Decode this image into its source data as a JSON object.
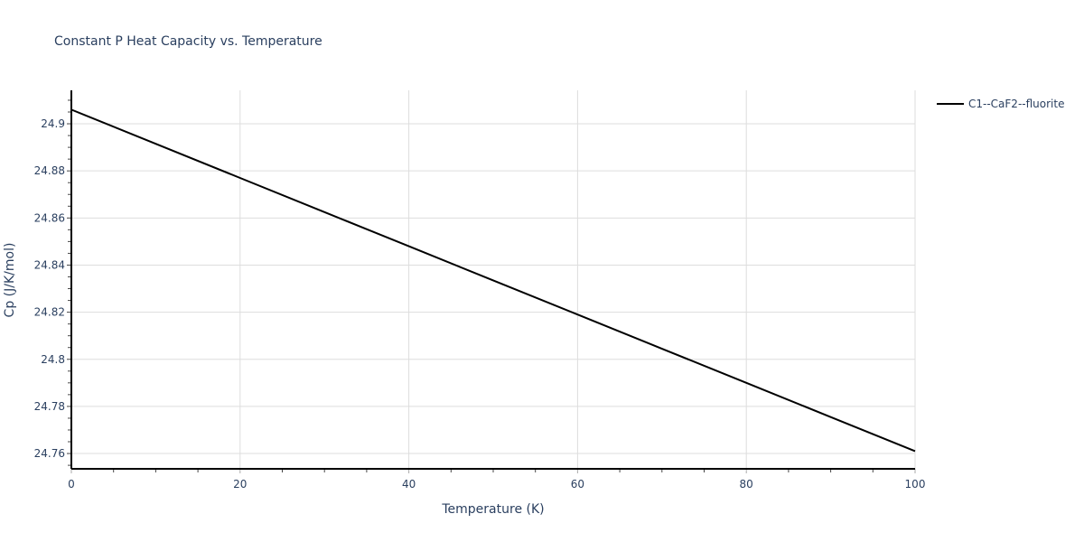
{
  "chart_data": {
    "type": "line",
    "title": "Constant P Heat Capacity vs. Temperature",
    "xlabel": "Temperature (K)",
    "ylabel": "Cp (J/K/mol)",
    "xlim": [
      0,
      100
    ],
    "ylim": [
      24.7535,
      24.9142
    ],
    "x_ticks": [
      0,
      20,
      40,
      60,
      80,
      100
    ],
    "y_ticks": [
      24.76,
      24.78,
      24.8,
      24.82,
      24.84,
      24.86,
      24.88,
      24.9
    ],
    "y_tick_labels": [
      "24.76",
      "24.78",
      "24.8",
      "24.82",
      "24.84",
      "24.86",
      "24.88",
      "24.9"
    ],
    "grid": true,
    "legend_position": "top-right, outside plot",
    "series": [
      {
        "name": "C1--CaF2--fluorite",
        "color": "#000000",
        "x": [
          0,
          10,
          20,
          30,
          40,
          50,
          60,
          70,
          80,
          90,
          100
        ],
        "y": [
          24.906,
          24.8915,
          24.877,
          24.8625,
          24.848,
          24.8335,
          24.819,
          24.8045,
          24.79,
          24.7755,
          24.761
        ]
      }
    ]
  },
  "colors": {
    "text": "#2a3f5f",
    "grid": "#dddddd",
    "axis": "#000000",
    "line": "#000000"
  }
}
